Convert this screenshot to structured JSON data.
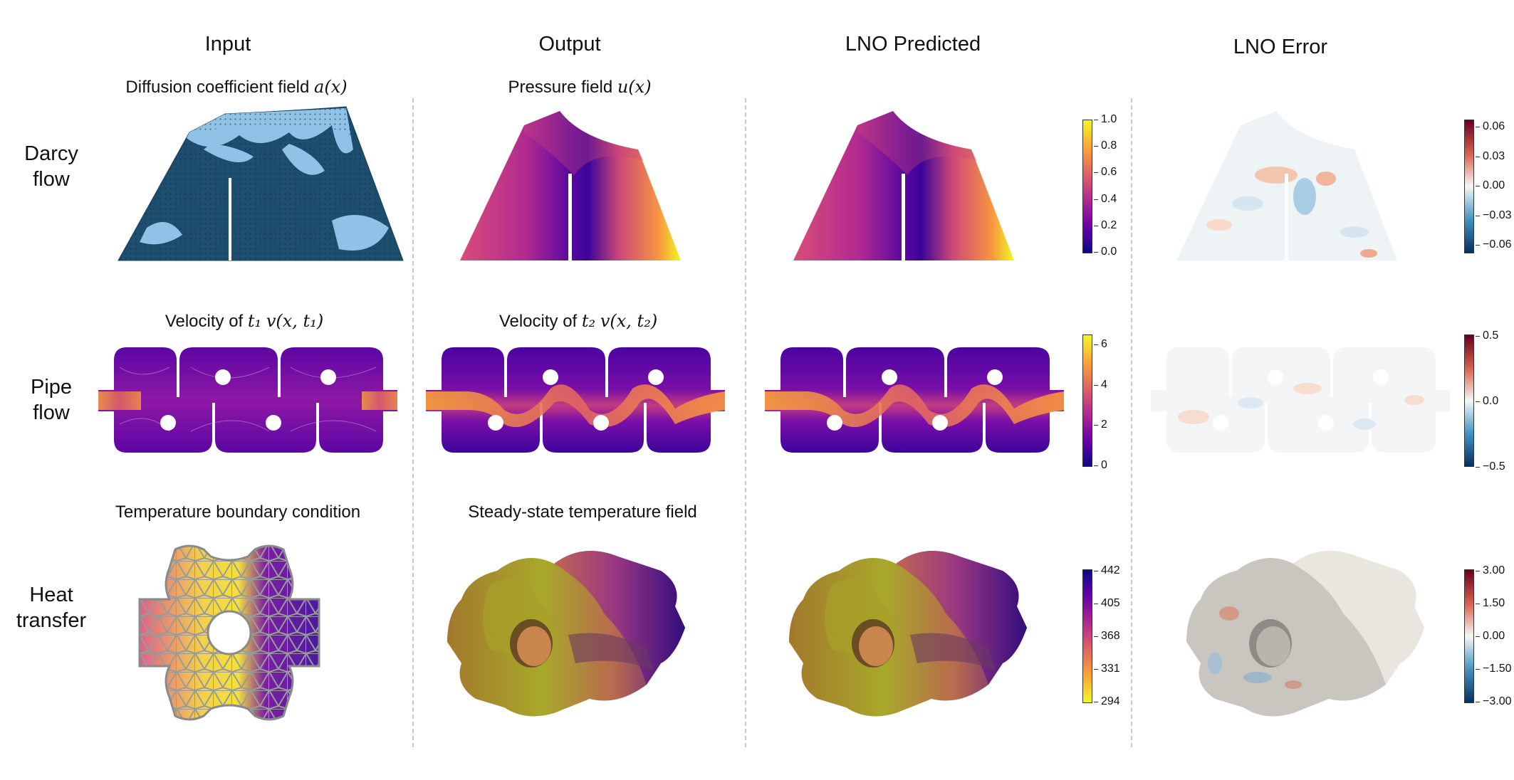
{
  "columns": {
    "input": "Input",
    "output": "Output",
    "lno_predicted": "LNO Predicted",
    "lno_error": "LNO Error"
  },
  "rows": {
    "darcy": {
      "label_line1": "Darcy",
      "label_line2": "flow",
      "input_title": "Diffusion coefficient field",
      "input_math": "a(x)",
      "output_title": "Pressure field",
      "output_math": "u(x)"
    },
    "pipe": {
      "label_line1": "Pipe",
      "label_line2": "flow",
      "input_title": "Velocity of",
      "input_math_t": "t₁",
      "input_math": "v(x, t₁)",
      "output_title": "Velocity of",
      "output_math_t": "t₂",
      "output_math": "v(x, t₂)"
    },
    "heat": {
      "label_line1": "Heat",
      "label_line2": "transfer",
      "input_title": "Temperature boundary condition",
      "output_title": "Steady-state temperature field"
    }
  },
  "colorbars": {
    "darcy_field": {
      "colormap": "plasma",
      "ticks": [
        "1.0",
        "0.8",
        "0.6",
        "0.4",
        "0.2",
        "0.0"
      ]
    },
    "darcy_error": {
      "colormap": "RdBu_r",
      "ticks": [
        "0.06",
        "0.03",
        "0.00",
        "−0.03",
        "−0.06"
      ]
    },
    "pipe_field": {
      "colormap": "plasma",
      "ticks": [
        "6",
        "4",
        "2",
        "0"
      ]
    },
    "pipe_error": {
      "colormap": "RdBu_r",
      "ticks": [
        "0.5",
        "0.0",
        "−0.5"
      ]
    },
    "heat_field": {
      "colormap": "plasma_r",
      "ticks": [
        "442",
        "405",
        "368",
        "331",
        "294"
      ]
    },
    "heat_error": {
      "colormap": "RdBu_r",
      "ticks": [
        "3.00",
        "1.50",
        "0.00",
        "−1.50",
        "−3.00"
      ]
    }
  },
  "colors": {
    "plasma_top": "#f0f921",
    "plasma_bottom": "#0d0887",
    "rdbu_top": "#67001f",
    "rdbu_bottom": "#053061",
    "darcy_dark": "#1d4e6e",
    "darcy_light": "#8fc2e6",
    "divider": "#c8c8c8"
  }
}
